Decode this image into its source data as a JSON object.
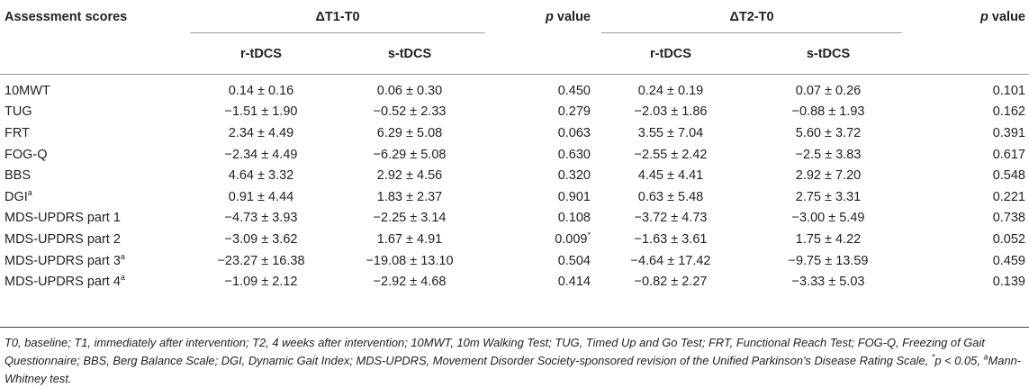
{
  "header": {
    "col1": "Assessment scores",
    "group1": "ΔT1-T0",
    "group2": "ΔT2-T0",
    "pvalue_italic": "p",
    "pvalue_rest": " value",
    "sub_r": "r-tDCS",
    "sub_s": "s-tDCS"
  },
  "rows": [
    {
      "name": "10MWT",
      "sup": "",
      "t1r": "0.14 ± 0.16",
      "t1s": "0.06 ± 0.30",
      "p1": "0.450",
      "p1sup": "",
      "t2r": "0.24 ± 0.19",
      "t2s": "0.07 ± 0.26",
      "p2": "0.101"
    },
    {
      "name": "TUG",
      "sup": "",
      "t1r": "−1.51 ± 1.90",
      "t1s": "−0.52 ± 2.33",
      "p1": "0.279",
      "p1sup": "",
      "t2r": "−2.03 ± 1.86",
      "t2s": "−0.88 ± 1.93",
      "p2": "0.162"
    },
    {
      "name": "FRT",
      "sup": "",
      "t1r": "2.34 ± 4.49",
      "t1s": "6.29 ± 5.08",
      "p1": "0.063",
      "p1sup": "",
      "t2r": "3.55 ± 7.04",
      "t2s": "5.60 ± 3.72",
      "p2": "0.391"
    },
    {
      "name": "FOG-Q",
      "sup": "",
      "t1r": "−2.34 ± 4.49",
      "t1s": "−6.29 ± 5.08",
      "p1": "0.630",
      "p1sup": "",
      "t2r": "−2.55 ± 2.42",
      "t2s": "−2.5 ± 3.83",
      "p2": "0.617"
    },
    {
      "name": "BBS",
      "sup": "",
      "t1r": "4.64 ± 3.32",
      "t1s": "2.92 ± 4.56",
      "p1": "0.320",
      "p1sup": "",
      "t2r": "4.45 ± 4.41",
      "t2s": "2.92 ± 7.20",
      "p2": "0.548"
    },
    {
      "name": "DGI",
      "sup": "a",
      "t1r": "0.91 ± 4.44",
      "t1s": "1.83 ± 2.37",
      "p1": "0.901",
      "p1sup": "",
      "t2r": "0.63 ± 5.48",
      "t2s": "2.75 ± 3.31",
      "p2": "0.221"
    },
    {
      "name": "MDS-UPDRS part 1",
      "sup": "",
      "t1r": "−4.73 ± 3.93",
      "t1s": "−2.25 ± 3.14",
      "p1": "0.108",
      "p1sup": "",
      "t2r": "−3.72 ± 4.73",
      "t2s": "−3.00 ± 5.49",
      "p2": "0.738"
    },
    {
      "name": "MDS-UPDRS part 2",
      "sup": "",
      "t1r": "−3.09 ± 3.62",
      "t1s": "1.67 ± 4.91",
      "p1": "0.009",
      "p1sup": "*",
      "t2r": "−1.63 ± 3.61",
      "t2s": "1.75 ± 4.22",
      "p2": "0.052"
    },
    {
      "name": "MDS-UPDRS part 3",
      "sup": "a",
      "t1r": "−23.27 ± 16.38",
      "t1s": "−19.08 ± 13.10",
      "p1": "0.504",
      "p1sup": "",
      "t2r": "−4.64 ± 17.42",
      "t2s": "−9.75 ± 13.59",
      "p2": "0.459"
    },
    {
      "name": "MDS-UPDRS part 4",
      "sup": "a",
      "t1r": "−1.09 ± 2.12",
      "t1s": "−2.92 ± 4.68",
      "p1": "0.414",
      "p1sup": "",
      "t2r": "−0.82 ± 2.27",
      "t2s": "−3.33 ± 5.03",
      "p2": "0.139"
    }
  ],
  "footnote": {
    "main": "T0, baseline; T1, immediately after intervention; T2, 4 weeks after intervention; 10MWT, 10m Walking Test; TUG, Timed Up and Go Test; FRT, Functional Reach Test; FOG-Q, Freezing of Gait Questionnaire; BBS, Berg Balance Scale; DGI, Dynamic Gait Index; MDS-UPDRS, Movement Disorder Society-sponsored revision of the Unified Parkinson's Disease Rating Scale, ",
    "star": "*",
    "p_text": "p < 0.05, ",
    "a_sup": "a",
    "mw": "Mann-Whitney test."
  }
}
